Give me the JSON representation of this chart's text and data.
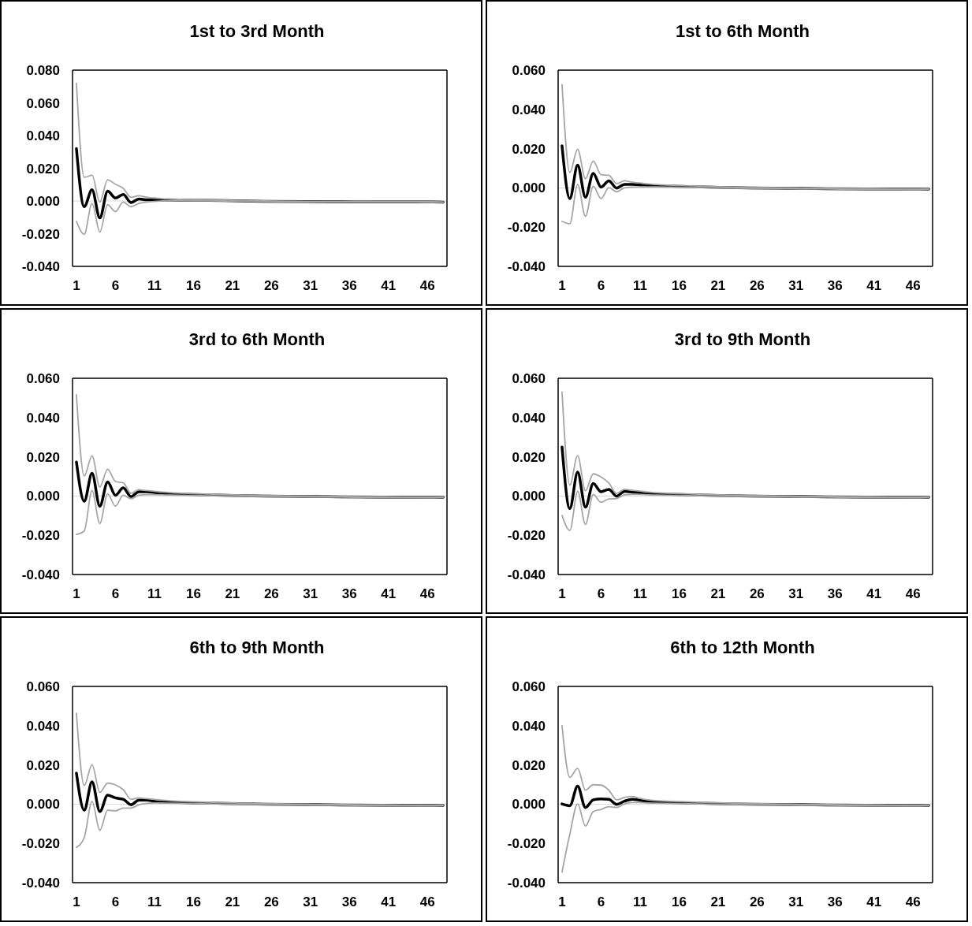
{
  "chart_data": [
    {
      "type": "line",
      "title": "1st to 3rd Month",
      "x": [
        1,
        2,
        3,
        4,
        5,
        6,
        7,
        8,
        9,
        10,
        11,
        12,
        13,
        16,
        20,
        25,
        30,
        35,
        40,
        44,
        48
      ],
      "xlim": [
        0.5,
        48.5
      ],
      "xticks": [
        1,
        6,
        11,
        16,
        21,
        26,
        31,
        36,
        41,
        46
      ],
      "ylim": [
        -0.04,
        0.08
      ],
      "yticks": [
        {
          "value": -0.04,
          "label": "-0.040"
        },
        {
          "value": -0.02,
          "label": "-0.020"
        },
        {
          "value": 0,
          "label": "0.000"
        },
        {
          "value": 0.02,
          "label": "0.020"
        },
        {
          "value": 0.04,
          "label": "0.040"
        },
        {
          "value": 0.06,
          "label": "0.060"
        },
        {
          "value": 0.08,
          "label": "0.080"
        }
      ],
      "ref_lines": [
        {
          "axis": "y",
          "value": 0,
          "color": "#d9d9d9"
        }
      ],
      "series": [
        {
          "color": "#a6a6a6",
          "values": [
            0.072,
            0.0144,
            0.0157,
            -0.0007,
            0.013,
            0.0102,
            0.0077,
            0.0022,
            0.0032,
            0.0022,
            0.0018,
            0.0014,
            0.0012,
            0.0008,
            0.0005,
            0.0001,
            -0.0002,
            -0.0003,
            -0.0004,
            -0.0004,
            -0.0005
          ]
        },
        {
          "color": "#a6a6a6",
          "values": [
            -0.0124,
            -0.0204,
            -0.0015,
            -0.019,
            -0.0023,
            -0.0065,
            -0.0007,
            -0.0035,
            -0.0015,
            -0.0007,
            -0.0003,
            0.0001,
            0.0002,
            0.0001,
            0,
            -0.0004,
            -0.0006,
            -0.0007,
            -0.0008,
            -0.0008,
            -0.0009
          ]
        },
        {
          "color": "#000000",
          "values": [
            0.032,
            -0.0035,
            0.0069,
            -0.0104,
            0.006,
            0.0018,
            0.004,
            -0.001,
            0.0012,
            0.0007,
            0.0007,
            0.0006,
            0.0006,
            0.0004,
            0.0002,
            -0.0002,
            -0.0004,
            -0.0005,
            -0.0006,
            -0.0006,
            -0.0007
          ]
        }
      ]
    },
    {
      "type": "line",
      "title": "1st to 6th Month",
      "x": [
        1,
        2,
        3,
        4,
        5,
        6,
        7,
        8,
        9,
        10,
        11,
        12,
        13,
        16,
        20,
        25,
        30,
        35,
        40,
        44,
        48
      ],
      "xlim": [
        0.5,
        48.5
      ],
      "xticks": [
        1,
        6,
        11,
        16,
        21,
        26,
        31,
        36,
        41,
        46
      ],
      "ylim": [
        -0.04,
        0.06
      ],
      "yticks": [
        {
          "value": -0.04,
          "label": "-0.040"
        },
        {
          "value": -0.02,
          "label": "-0.020"
        },
        {
          "value": 0,
          "label": "0.000"
        },
        {
          "value": 0.02,
          "label": "0.020"
        },
        {
          "value": 0.04,
          "label": "0.040"
        },
        {
          "value": 0.06,
          "label": "0.060"
        }
      ],
      "ref_lines": [
        {
          "axis": "y",
          "value": 0,
          "color": "#d9d9d9"
        }
      ],
      "series": [
        {
          "color": "#a6a6a6",
          "values": [
            0.0526,
            0.0078,
            0.0197,
            0.0046,
            0.0137,
            0.0067,
            0.0064,
            0.0022,
            0.0036,
            0.0029,
            0.0025,
            0.002,
            0.0017,
            0.0012,
            0.0007,
            0.0003,
            0,
            -0.0002,
            -0.0003,
            -0.0004,
            -0.0004
          ]
        },
        {
          "color": "#a6a6a6",
          "values": [
            -0.017,
            -0.0183,
            0.0018,
            -0.0145,
            0.0008,
            -0.0055,
            0.0001,
            -0.002,
            0,
            0.0004,
            0.0005,
            0.0005,
            0.0005,
            0.0003,
            0,
            -0.0003,
            -0.0005,
            -0.0006,
            -0.0007,
            -0.0007,
            -0.0008
          ]
        },
        {
          "color": "#000000",
          "values": [
            0.0214,
            -0.0055,
            0.0116,
            -0.0048,
            0.0074,
            0.0004,
            0.0036,
            -0.0001,
            0.0018,
            0.0018,
            0.0015,
            0.0013,
            0.0011,
            0.0008,
            0.0004,
            0,
            -0.0002,
            -0.0004,
            -0.0005,
            -0.0005,
            -0.0006
          ]
        }
      ]
    },
    {
      "type": "line",
      "title": "3rd to 6th Month",
      "x": [
        1,
        2,
        3,
        4,
        5,
        6,
        7,
        8,
        9,
        10,
        11,
        12,
        13,
        16,
        20,
        25,
        30,
        35,
        40,
        44,
        48
      ],
      "xlim": [
        0.5,
        48.5
      ],
      "xticks": [
        1,
        6,
        11,
        16,
        21,
        26,
        31,
        36,
        41,
        46
      ],
      "ylim": [
        -0.04,
        0.06
      ],
      "yticks": [
        {
          "value": -0.04,
          "label": "-0.040"
        },
        {
          "value": -0.02,
          "label": "-0.020"
        },
        {
          "value": 0,
          "label": "0.000"
        },
        {
          "value": 0.02,
          "label": "0.020"
        },
        {
          "value": 0.04,
          "label": "0.040"
        },
        {
          "value": 0.06,
          "label": "0.060"
        }
      ],
      "ref_lines": [
        {
          "axis": "y",
          "value": 0,
          "color": "#d9d9d9"
        }
      ],
      "series": [
        {
          "color": "#a6a6a6",
          "values": [
            0.0516,
            0.0102,
            0.0205,
            0.0046,
            0.0137,
            0.0074,
            0.0067,
            0.0014,
            0.0032,
            0.0028,
            0.0024,
            0.002,
            0.0017,
            0.0012,
            0.0007,
            0.0003,
            0,
            -0.0002,
            -0.0003,
            -0.0004,
            -0.0004
          ]
        },
        {
          "color": "#a6a6a6",
          "values": [
            -0.0196,
            -0.0178,
            0.0028,
            -0.014,
            0.0011,
            -0.0052,
            0.0004,
            -0.0014,
            0.0004,
            0.0007,
            0.0007,
            0.0006,
            0.0005,
            0.0003,
            0,
            -0.0003,
            -0.0005,
            -0.0006,
            -0.0007,
            -0.0007,
            -0.0008
          ]
        },
        {
          "color": "#000000",
          "values": [
            0.0173,
            -0.0027,
            0.0116,
            -0.0052,
            0.0072,
            0.0004,
            0.0042,
            -0.0003,
            0.0022,
            0.0022,
            0.0018,
            0.0014,
            0.0012,
            0.0008,
            0.0004,
            0,
            -0.0002,
            -0.0004,
            -0.0005,
            -0.0005,
            -0.0006
          ]
        }
      ]
    },
    {
      "type": "line",
      "title": "3rd to 9th Month",
      "x": [
        1,
        2,
        3,
        4,
        5,
        6,
        7,
        8,
        9,
        10,
        11,
        12,
        13,
        16,
        20,
        25,
        30,
        35,
        40,
        44,
        48
      ],
      "xlim": [
        0.5,
        48.5
      ],
      "xticks": [
        1,
        6,
        11,
        16,
        21,
        26,
        31,
        36,
        41,
        46
      ],
      "ylim": [
        -0.04,
        0.06
      ],
      "yticks": [
        {
          "value": -0.04,
          "label": "-0.040"
        },
        {
          "value": -0.02,
          "label": "-0.020"
        },
        {
          "value": 0,
          "label": "0.000"
        },
        {
          "value": 0.02,
          "label": "0.020"
        },
        {
          "value": 0.04,
          "label": "0.040"
        },
        {
          "value": 0.06,
          "label": "0.060"
        }
      ],
      "ref_lines": [
        {
          "axis": "y",
          "value": 0,
          "color": "#d9d9d9"
        }
      ],
      "series": [
        {
          "color": "#a6a6a6",
          "values": [
            0.053,
            0.0055,
            0.0206,
            0.0027,
            0.0113,
            0.0097,
            0.0066,
            0.0013,
            0.0034,
            0.0029,
            0.0025,
            0.002,
            0.0017,
            0.0012,
            0.0007,
            0.0003,
            0,
            -0.0002,
            -0.0003,
            -0.0004,
            -0.0004
          ]
        },
        {
          "color": "#a6a6a6",
          "values": [
            -0.0099,
            -0.0176,
            0.0024,
            -0.0145,
            0.0008,
            -0.0032,
            -0.0015,
            -0.0013,
            0.0006,
            0.0008,
            0.0008,
            0.0006,
            0.0005,
            0.0003,
            0,
            -0.0003,
            -0.0005,
            -0.0006,
            -0.0007,
            -0.0007,
            -0.0008
          ]
        },
        {
          "color": "#000000",
          "values": [
            0.025,
            -0.0064,
            0.0122,
            -0.0057,
            0.0064,
            0.0022,
            0.0034,
            -0.0001,
            0.0024,
            0.002,
            0.0017,
            0.0013,
            0.0011,
            0.0008,
            0.0004,
            0,
            -0.0002,
            -0.0004,
            -0.0005,
            -0.0005,
            -0.0006
          ]
        }
      ]
    },
    {
      "type": "line",
      "title": "6th to 9th Month",
      "x": [
        1,
        2,
        3,
        4,
        5,
        6,
        7,
        8,
        9,
        10,
        11,
        12,
        13,
        16,
        20,
        25,
        30,
        35,
        40,
        44,
        48
      ],
      "xlim": [
        0.5,
        48.5
      ],
      "xticks": [
        1,
        6,
        11,
        16,
        21,
        26,
        31,
        36,
        41,
        46
      ],
      "ylim": [
        -0.04,
        0.06
      ],
      "yticks": [
        {
          "value": -0.04,
          "label": "-0.040"
        },
        {
          "value": -0.02,
          "label": "-0.020"
        },
        {
          "value": 0,
          "label": "0.000"
        },
        {
          "value": 0.02,
          "label": "0.020"
        },
        {
          "value": 0.04,
          "label": "0.040"
        },
        {
          "value": 0.06,
          "label": "0.060"
        }
      ],
      "ref_lines": [
        {
          "axis": "y",
          "value": 0,
          "color": "#d9d9d9"
        }
      ],
      "series": [
        {
          "color": "#a6a6a6",
          "values": [
            0.0463,
            0.0095,
            0.0201,
            0.006,
            0.0107,
            0.0098,
            0.0074,
            0.0025,
            0.0032,
            0.0028,
            0.0024,
            0.002,
            0.0017,
            0.0012,
            0.0007,
            0.0003,
            0,
            -0.0002,
            -0.0003,
            -0.0004,
            -0.0004
          ]
        },
        {
          "color": "#a6a6a6",
          "values": [
            -0.022,
            -0.0171,
            0.0014,
            -0.0133,
            -0.0031,
            -0.0034,
            -0.002,
            -0.002,
            -0.0003,
            0.0004,
            0.0006,
            0.0006,
            0.0005,
            0.0003,
            0,
            -0.0003,
            -0.0005,
            -0.0006,
            -0.0007,
            -0.0007,
            -0.0008
          ]
        },
        {
          "color": "#000000",
          "values": [
            0.0158,
            -0.0031,
            0.0114,
            -0.0038,
            0.0046,
            0.0032,
            0.0025,
            -0.0003,
            0.0021,
            0.0021,
            0.0015,
            0.0011,
            0.001,
            0.0007,
            0.0004,
            0,
            -0.0002,
            -0.0004,
            -0.0005,
            -0.0005,
            -0.0006
          ]
        }
      ]
    },
    {
      "type": "line",
      "title": "6th to 12th Month",
      "x": [
        1,
        2,
        3,
        4,
        5,
        6,
        7,
        8,
        9,
        10,
        11,
        12,
        13,
        16,
        20,
        25,
        30,
        35,
        40,
        44,
        48
      ],
      "xlim": [
        0.5,
        48.5
      ],
      "xticks": [
        1,
        6,
        11,
        16,
        21,
        26,
        31,
        36,
        41,
        46
      ],
      "ylim": [
        -0.04,
        0.06
      ],
      "yticks": [
        {
          "value": -0.04,
          "label": "-0.040"
        },
        {
          "value": -0.02,
          "label": "-0.020"
        },
        {
          "value": 0,
          "label": "0.000"
        },
        {
          "value": 0.02,
          "label": "0.020"
        },
        {
          "value": 0.04,
          "label": "0.040"
        },
        {
          "value": 0.06,
          "label": "0.060"
        }
      ],
      "ref_lines": [
        {
          "axis": "y",
          "value": 0,
          "color": "#d9d9d9"
        }
      ],
      "series": [
        {
          "color": "#a6a6a6",
          "values": [
            0.04,
            0.0137,
            0.0183,
            0.0071,
            0.0099,
            0.0097,
            0.0071,
            0.0022,
            0.0034,
            0.0039,
            0.0029,
            0.0022,
            0.0018,
            0.0013,
            0.0008,
            0.0003,
            0,
            -0.0002,
            -0.0003,
            -0.0004,
            -0.0004
          ]
        },
        {
          "color": "#a6a6a6",
          "values": [
            -0.0346,
            -0.0153,
            0.0001,
            -0.0111,
            -0.0038,
            -0.0027,
            -0.0013,
            -0.0017,
            0.0001,
            0.0008,
            0.0008,
            0.0006,
            0.0005,
            0.0003,
            0,
            -0.0003,
            -0.0005,
            -0.0006,
            -0.0007,
            -0.0007,
            -0.0008
          ]
        },
        {
          "color": "#000000",
          "values": [
            0.0001,
            -0.0008,
            0.0092,
            -0.0017,
            0.0022,
            0.0027,
            0.0025,
            -0.0001,
            0.0015,
            0.0025,
            0.002,
            0.0013,
            0.0011,
            0.0008,
            0.0004,
            0,
            -0.0002,
            -0.0004,
            -0.0005,
            -0.0005,
            -0.0006
          ]
        }
      ]
    }
  ]
}
